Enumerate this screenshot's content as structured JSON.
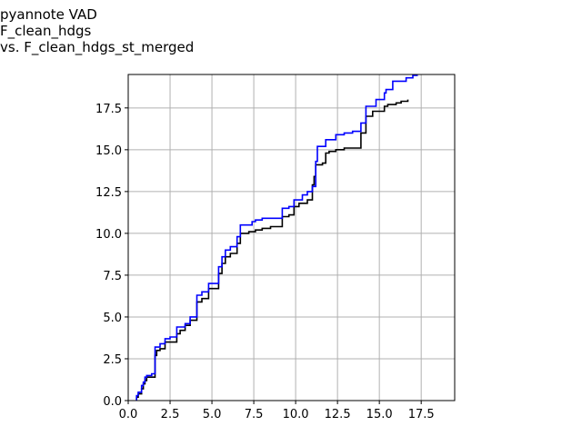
{
  "chart_data": {
    "type": "line",
    "title_lines": [
      "pyannote VAD",
      "F_clean_hdgs",
      "vs. F_clean_hdgs_st_merged"
    ],
    "xlabel": "",
    "ylabel": "",
    "xlim": [
      0,
      19.5
    ],
    "ylim": [
      0,
      19.5
    ],
    "grid": true,
    "x_ticks": [
      0.0,
      2.5,
      5.0,
      7.5,
      10.0,
      12.5,
      15.0,
      17.5
    ],
    "y_ticks": [
      0.0,
      2.5,
      5.0,
      7.5,
      10.0,
      12.5,
      15.0,
      17.5
    ],
    "x_tick_labels": [
      "0.0",
      "2.5",
      "5.0",
      "7.5",
      "10.0",
      "12.5",
      "15.0",
      "17.5"
    ],
    "y_tick_labels": [
      "0.0",
      "2.5",
      "5.0",
      "7.5",
      "10.0",
      "12.5",
      "15.0",
      "17.5"
    ],
    "series": [
      {
        "color": "#000000",
        "points": [
          [
            0.5,
            0.0
          ],
          [
            0.5,
            0.2
          ],
          [
            0.6,
            0.2
          ],
          [
            0.6,
            0.4
          ],
          [
            0.8,
            0.4
          ],
          [
            0.8,
            0.7
          ],
          [
            0.9,
            0.7
          ],
          [
            0.9,
            1.0
          ],
          [
            1.0,
            1.0
          ],
          [
            1.0,
            1.2
          ],
          [
            1.1,
            1.2
          ],
          [
            1.1,
            1.4
          ],
          [
            1.6,
            1.4
          ],
          [
            1.6,
            2.7
          ],
          [
            1.7,
            2.7
          ],
          [
            1.7,
            3.0
          ],
          [
            1.9,
            3.0
          ],
          [
            1.9,
            3.1
          ],
          [
            2.2,
            3.1
          ],
          [
            2.2,
            3.5
          ],
          [
            2.9,
            3.5
          ],
          [
            2.9,
            4.0
          ],
          [
            3.1,
            4.0
          ],
          [
            3.1,
            4.2
          ],
          [
            3.4,
            4.2
          ],
          [
            3.4,
            4.5
          ],
          [
            3.7,
            4.5
          ],
          [
            3.7,
            4.8
          ],
          [
            4.1,
            4.8
          ],
          [
            4.1,
            5.9
          ],
          [
            4.4,
            5.9
          ],
          [
            4.4,
            6.1
          ],
          [
            4.8,
            6.1
          ],
          [
            4.8,
            6.7
          ],
          [
            5.4,
            6.7
          ],
          [
            5.4,
            7.6
          ],
          [
            5.6,
            7.6
          ],
          [
            5.6,
            8.2
          ],
          [
            5.8,
            8.2
          ],
          [
            5.8,
            8.6
          ],
          [
            6.1,
            8.6
          ],
          [
            6.1,
            8.8
          ],
          [
            6.5,
            8.8
          ],
          [
            6.5,
            9.4
          ],
          [
            6.7,
            9.4
          ],
          [
            6.7,
            10.0
          ],
          [
            7.2,
            10.0
          ],
          [
            7.2,
            10.1
          ],
          [
            7.6,
            10.1
          ],
          [
            7.6,
            10.2
          ],
          [
            8.0,
            10.2
          ],
          [
            8.0,
            10.3
          ],
          [
            8.5,
            10.3
          ],
          [
            8.5,
            10.4
          ],
          [
            9.2,
            10.4
          ],
          [
            9.2,
            11.0
          ],
          [
            9.6,
            11.0
          ],
          [
            9.6,
            11.1
          ],
          [
            9.9,
            11.1
          ],
          [
            9.9,
            11.6
          ],
          [
            10.2,
            11.6
          ],
          [
            10.2,
            11.8
          ],
          [
            10.7,
            11.8
          ],
          [
            10.7,
            12.0
          ],
          [
            11.0,
            12.0
          ],
          [
            11.0,
            12.9
          ],
          [
            11.1,
            12.9
          ],
          [
            11.1,
            13.4
          ],
          [
            11.2,
            13.4
          ],
          [
            11.2,
            14.1
          ],
          [
            11.6,
            14.1
          ],
          [
            11.6,
            14.2
          ],
          [
            11.8,
            14.2
          ],
          [
            11.8,
            14.8
          ],
          [
            12.0,
            14.8
          ],
          [
            12.0,
            14.9
          ],
          [
            12.4,
            14.9
          ],
          [
            12.4,
            15.0
          ],
          [
            12.9,
            15.0
          ],
          [
            12.9,
            15.1
          ],
          [
            13.9,
            15.1
          ],
          [
            13.9,
            16.0
          ],
          [
            14.2,
            16.0
          ],
          [
            14.2,
            17.0
          ],
          [
            14.6,
            17.0
          ],
          [
            14.6,
            17.3
          ],
          [
            15.3,
            17.3
          ],
          [
            15.3,
            17.6
          ],
          [
            15.5,
            17.6
          ],
          [
            15.5,
            17.7
          ],
          [
            16.0,
            17.7
          ],
          [
            16.0,
            17.8
          ],
          [
            16.3,
            17.8
          ],
          [
            16.3,
            17.9
          ],
          [
            16.7,
            17.9
          ],
          [
            16.7,
            18.0
          ]
        ]
      },
      {
        "color": "#0000ff",
        "points": [
          [
            0.5,
            0.0
          ],
          [
            0.5,
            0.3
          ],
          [
            0.6,
            0.3
          ],
          [
            0.6,
            0.5
          ],
          [
            0.8,
            0.5
          ],
          [
            0.8,
            0.9
          ],
          [
            0.9,
            0.9
          ],
          [
            0.9,
            1.1
          ],
          [
            1.0,
            1.1
          ],
          [
            1.0,
            1.4
          ],
          [
            1.1,
            1.4
          ],
          [
            1.1,
            1.5
          ],
          [
            1.4,
            1.5
          ],
          [
            1.4,
            1.6
          ],
          [
            1.6,
            1.6
          ],
          [
            1.6,
            3.2
          ],
          [
            1.9,
            3.2
          ],
          [
            1.9,
            3.4
          ],
          [
            2.2,
            3.4
          ],
          [
            2.2,
            3.7
          ],
          [
            2.5,
            3.7
          ],
          [
            2.5,
            3.8
          ],
          [
            2.9,
            3.8
          ],
          [
            2.9,
            4.4
          ],
          [
            3.4,
            4.4
          ],
          [
            3.4,
            4.6
          ],
          [
            3.7,
            4.6
          ],
          [
            3.7,
            5.0
          ],
          [
            4.1,
            5.0
          ],
          [
            4.1,
            6.3
          ],
          [
            4.4,
            6.3
          ],
          [
            4.4,
            6.5
          ],
          [
            4.8,
            6.5
          ],
          [
            4.8,
            7.0
          ],
          [
            5.4,
            7.0
          ],
          [
            5.4,
            8.0
          ],
          [
            5.6,
            8.0
          ],
          [
            5.6,
            8.6
          ],
          [
            5.8,
            8.6
          ],
          [
            5.8,
            9.0
          ],
          [
            6.1,
            9.0
          ],
          [
            6.1,
            9.2
          ],
          [
            6.5,
            9.2
          ],
          [
            6.5,
            9.8
          ],
          [
            6.7,
            9.8
          ],
          [
            6.7,
            10.5
          ],
          [
            7.4,
            10.5
          ],
          [
            7.4,
            10.7
          ],
          [
            7.6,
            10.7
          ],
          [
            7.6,
            10.8
          ],
          [
            8.0,
            10.8
          ],
          [
            8.0,
            10.9
          ],
          [
            9.2,
            10.9
          ],
          [
            9.2,
            11.5
          ],
          [
            9.6,
            11.5
          ],
          [
            9.6,
            11.6
          ],
          [
            9.9,
            11.6
          ],
          [
            9.9,
            12.0
          ],
          [
            10.4,
            12.0
          ],
          [
            10.4,
            12.3
          ],
          [
            10.7,
            12.3
          ],
          [
            10.7,
            12.5
          ],
          [
            11.0,
            12.5
          ],
          [
            11.0,
            12.8
          ],
          [
            11.2,
            12.8
          ],
          [
            11.2,
            14.3
          ],
          [
            11.3,
            14.3
          ],
          [
            11.3,
            15.2
          ],
          [
            11.8,
            15.2
          ],
          [
            11.8,
            15.6
          ],
          [
            12.4,
            15.6
          ],
          [
            12.4,
            15.9
          ],
          [
            12.9,
            15.9
          ],
          [
            12.9,
            16.0
          ],
          [
            13.4,
            16.0
          ],
          [
            13.4,
            16.1
          ],
          [
            13.9,
            16.1
          ],
          [
            13.9,
            16.6
          ],
          [
            14.2,
            16.6
          ],
          [
            14.2,
            17.6
          ],
          [
            14.8,
            17.6
          ],
          [
            14.8,
            18.0
          ],
          [
            15.3,
            18.0
          ],
          [
            15.3,
            18.4
          ],
          [
            15.4,
            18.4
          ],
          [
            15.4,
            18.6
          ],
          [
            15.8,
            18.6
          ],
          [
            15.8,
            19.1
          ],
          [
            16.6,
            19.1
          ],
          [
            16.6,
            19.3
          ],
          [
            17.0,
            19.3
          ],
          [
            17.0,
            19.45
          ],
          [
            17.3,
            19.45
          ]
        ]
      }
    ]
  }
}
